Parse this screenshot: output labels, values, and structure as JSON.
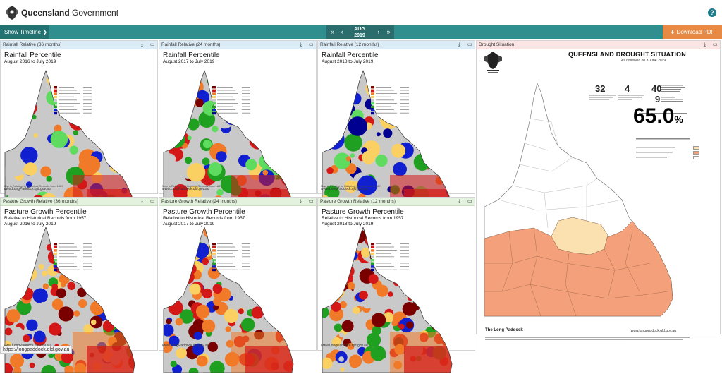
{
  "header": {
    "brand_bold": "Queensland",
    "brand_rest": " Government",
    "help_icon": "?"
  },
  "navbar": {
    "show_timeline": "Show Timeline ❯",
    "first": "«",
    "prev": "‹",
    "month": "AUG",
    "year": "2019",
    "next": "›",
    "last": "»",
    "download_pdf": "⬇ Download PDF"
  },
  "panels": [
    {
      "header": "Rainfall Relative (36 months)",
      "title": "Rainfall Percentile",
      "subtitle": "August 2016 to July 2019",
      "footnote": "Map is Relative to Historical Records from 1889",
      "url": "www.LongPaddock.qld.gov.au"
    },
    {
      "header": "Rainfall Relative (24 months)",
      "title": "Rainfall Percentile",
      "subtitle": "August 2017 to July 2019",
      "footnote": "Map is Relative to Historical Records from 1889",
      "url": "www.LongPaddock.qld.gov.au"
    },
    {
      "header": "Rainfall Relative (12 months)",
      "title": "Rainfall Percentile",
      "subtitle": "August 2018 to July 2019",
      "footnote": "Map is Relative to Historical Records from 1889",
      "url": "www.LongPaddock.qld.gov.au"
    },
    {
      "header": "Pasture Growth Relative (36 months)",
      "title": "Pasture Growth Percentile",
      "subtitle": "Relative to Historical Records from 1957",
      "subtitle2": "August 2016 to July 2019",
      "footnote": "",
      "url": "www.LongPaddock.qld.gov.au"
    },
    {
      "header": "Pasture Growth Relative (24 months)",
      "title": "Pasture Growth Percentile",
      "subtitle": "Relative to Historical Records from 1957",
      "subtitle2": "August 2017 to July 2019",
      "footnote": "",
      "url": "www.LongPaddock.qld.gov.au"
    },
    {
      "header": "Pasture Growth Relative (12 months)",
      "title": "Pasture Growth Percentile",
      "subtitle": "Relative to Historical Records from 1957",
      "subtitle2": "August 2018 to July 2019",
      "footnote": "",
      "url": "www.LongPaddock.qld.gov.au"
    }
  ],
  "drought": {
    "header": "Drought Situation",
    "title": "QUEENSLAND DROUGHT SITUATION",
    "subtitle": "As reviewed on 3 June 2019",
    "stat1": "32",
    "stat2": "4",
    "stat3": "40",
    "stat4": "9",
    "percent": "65.0",
    "percent_sign": "%",
    "footer_brand": "The Long Paddock",
    "footer_url": "www.longpaddock.qld.gov.au"
  },
  "legend_colors": [
    "#7a0000",
    "#d41818",
    "#f07a28",
    "#fbd062",
    "#c9c9c9",
    "#5fdc5f",
    "#20a020",
    "#1020d0",
    "#000090"
  ],
  "status_url": "https://longpaddock.qld.gov.au",
  "colors": {
    "teal": "#2f8f8f",
    "orange": "#e98a44",
    "drought": "#f4a07a",
    "partial": "#fbe0b0"
  }
}
